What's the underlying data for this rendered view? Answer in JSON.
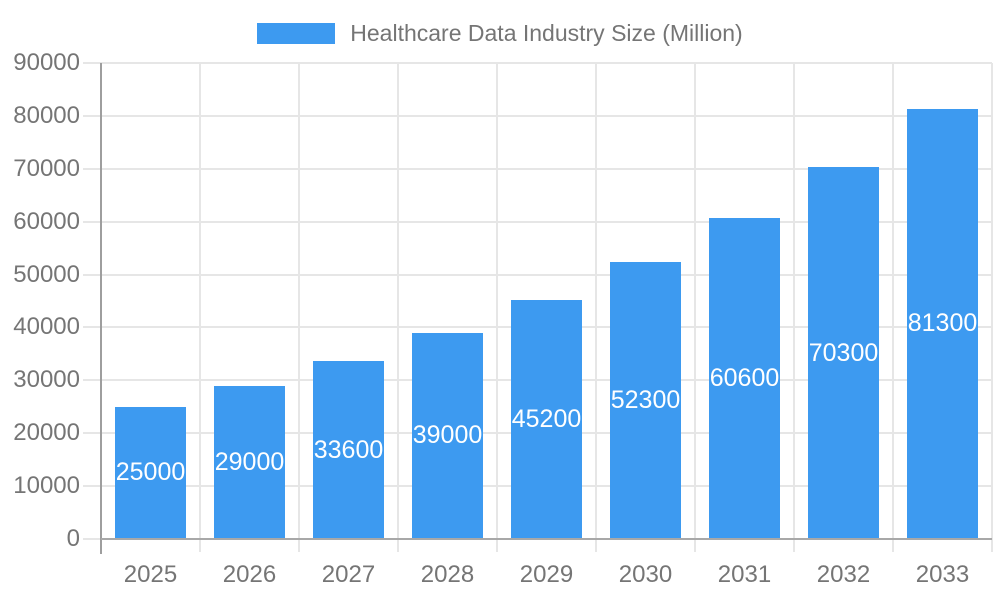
{
  "chart_data": {
    "type": "bar",
    "title": "Healthcare Data Industry Size (Million)",
    "legend": [
      "Healthcare Data Industry Size (Million)"
    ],
    "legend_position": "top",
    "categories": [
      "2025",
      "2026",
      "2027",
      "2028",
      "2029",
      "2030",
      "2031",
      "2032",
      "2033"
    ],
    "series": [
      {
        "name": "Healthcare Data Industry Size (Million)",
        "values": [
          25000,
          29000,
          33600,
          39000,
          45200,
          52300,
          60600,
          70300,
          81300
        ]
      }
    ],
    "bar_value_labels": [
      "25000",
      "29000",
      "33600",
      "39000",
      "45200",
      "52300",
      "60600",
      "70300",
      "81300"
    ],
    "xlabel": "",
    "ylabel": "",
    "ylim": [
      0,
      90000
    ],
    "ytick_step": 10000,
    "ytick_labels": [
      "0",
      "10000",
      "20000",
      "30000",
      "40000",
      "50000",
      "60000",
      "70000",
      "80000",
      "90000"
    ],
    "grid": true,
    "colors": {
      "bar": "#3d9af0",
      "bar_label": "#ffffff",
      "axis_text": "#757575",
      "gridline": "#e6e6e6",
      "axis_line": "#9e9e9e",
      "baseline": "#a8a8a8"
    }
  }
}
